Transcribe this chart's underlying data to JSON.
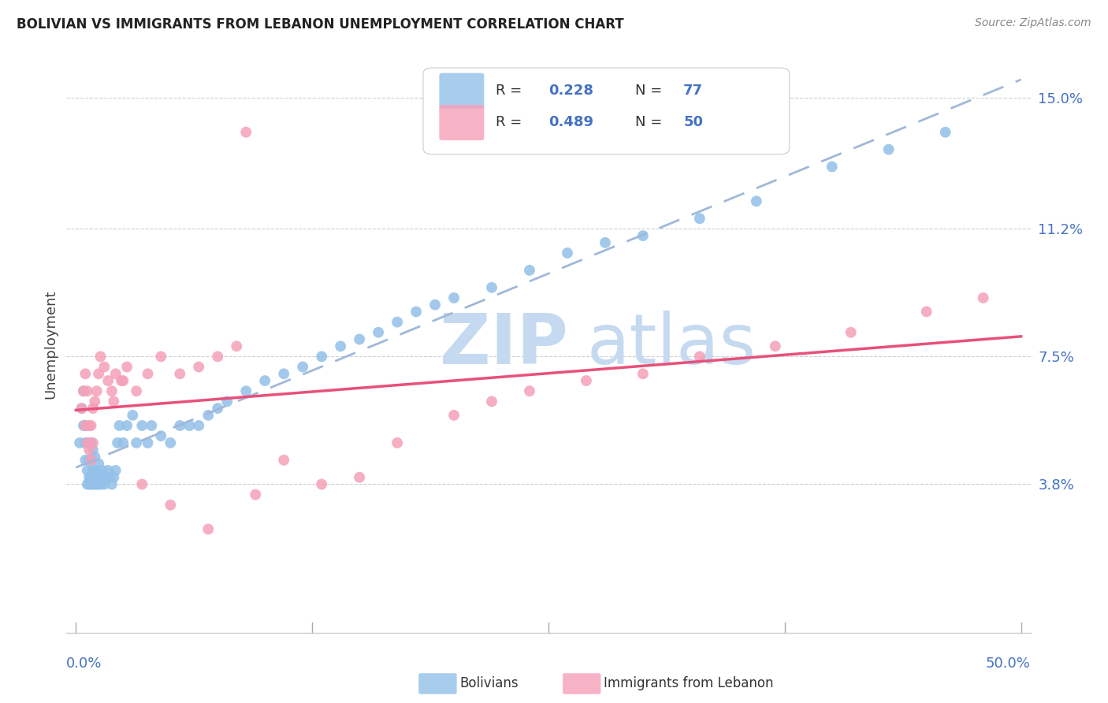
{
  "title": "BOLIVIAN VS IMMIGRANTS FROM LEBANON UNEMPLOYMENT CORRELATION CHART",
  "source": "Source: ZipAtlas.com",
  "ylabel": "Unemployment",
  "xlim": [
    0.0,
    0.5
  ],
  "ylim": [
    0.0,
    0.16
  ],
  "bolivians_color": "#92c0e8",
  "lebanon_color": "#f5a0b8",
  "trend_bolivians_color": "#b0c8e8",
  "trend_lebanon_color": "#e8507a",
  "trend_bolivians_solid_color": "#3060c0",
  "watermark_zip_color": "#c8ddf0",
  "watermark_atlas_color": "#c8ddf0",
  "bolivians_R": 0.228,
  "bolivians_N": 77,
  "lebanon_R": 0.489,
  "lebanon_N": 50,
  "ytick_vals": [
    0.038,
    0.075,
    0.112,
    0.15
  ],
  "ytick_labels": [
    "3.8%",
    "7.5%",
    "11.2%",
    "15.0%"
  ],
  "xtick_vals": [
    0.0,
    0.125,
    0.25,
    0.375,
    0.5
  ],
  "bolivians_x": [
    0.002,
    0.003,
    0.004,
    0.004,
    0.005,
    0.005,
    0.005,
    0.006,
    0.006,
    0.006,
    0.007,
    0.007,
    0.007,
    0.008,
    0.008,
    0.008,
    0.008,
    0.009,
    0.009,
    0.009,
    0.01,
    0.01,
    0.01,
    0.011,
    0.011,
    0.012,
    0.012,
    0.013,
    0.013,
    0.014,
    0.015,
    0.015,
    0.016,
    0.017,
    0.018,
    0.019,
    0.02,
    0.021,
    0.022,
    0.023,
    0.025,
    0.027,
    0.03,
    0.032,
    0.035,
    0.038,
    0.04,
    0.045,
    0.05,
    0.055,
    0.06,
    0.065,
    0.07,
    0.075,
    0.08,
    0.09,
    0.1,
    0.11,
    0.12,
    0.13,
    0.14,
    0.15,
    0.16,
    0.17,
    0.18,
    0.19,
    0.2,
    0.22,
    0.24,
    0.26,
    0.28,
    0.3,
    0.33,
    0.36,
    0.4,
    0.43,
    0.46
  ],
  "bolivians_y": [
    0.05,
    0.06,
    0.055,
    0.065,
    0.045,
    0.05,
    0.055,
    0.038,
    0.042,
    0.05,
    0.038,
    0.04,
    0.045,
    0.038,
    0.04,
    0.045,
    0.05,
    0.038,
    0.042,
    0.048,
    0.038,
    0.04,
    0.046,
    0.038,
    0.042,
    0.038,
    0.044,
    0.038,
    0.04,
    0.042,
    0.038,
    0.04,
    0.04,
    0.042,
    0.04,
    0.038,
    0.04,
    0.042,
    0.05,
    0.055,
    0.05,
    0.055,
    0.058,
    0.05,
    0.055,
    0.05,
    0.055,
    0.052,
    0.05,
    0.055,
    0.055,
    0.055,
    0.058,
    0.06,
    0.062,
    0.065,
    0.068,
    0.07,
    0.072,
    0.075,
    0.078,
    0.08,
    0.082,
    0.085,
    0.088,
    0.09,
    0.092,
    0.095,
    0.1,
    0.105,
    0.108,
    0.11,
    0.115,
    0.12,
    0.13,
    0.135,
    0.14
  ],
  "lebanon_x": [
    0.003,
    0.004,
    0.005,
    0.005,
    0.006,
    0.006,
    0.007,
    0.007,
    0.008,
    0.008,
    0.009,
    0.009,
    0.01,
    0.011,
    0.012,
    0.013,
    0.015,
    0.017,
    0.019,
    0.021,
    0.024,
    0.027,
    0.032,
    0.038,
    0.045,
    0.055,
    0.065,
    0.075,
    0.085,
    0.095,
    0.11,
    0.13,
    0.15,
    0.17,
    0.2,
    0.22,
    0.24,
    0.27,
    0.3,
    0.33,
    0.37,
    0.41,
    0.45,
    0.48,
    0.02,
    0.025,
    0.035,
    0.05,
    0.07,
    0.09
  ],
  "lebanon_y": [
    0.06,
    0.065,
    0.055,
    0.07,
    0.05,
    0.065,
    0.048,
    0.055,
    0.045,
    0.055,
    0.05,
    0.06,
    0.062,
    0.065,
    0.07,
    0.075,
    0.072,
    0.068,
    0.065,
    0.07,
    0.068,
    0.072,
    0.065,
    0.07,
    0.075,
    0.07,
    0.072,
    0.075,
    0.078,
    0.035,
    0.045,
    0.038,
    0.04,
    0.05,
    0.058,
    0.062,
    0.065,
    0.068,
    0.07,
    0.075,
    0.078,
    0.082,
    0.088,
    0.092,
    0.062,
    0.068,
    0.038,
    0.032,
    0.025,
    0.14
  ]
}
